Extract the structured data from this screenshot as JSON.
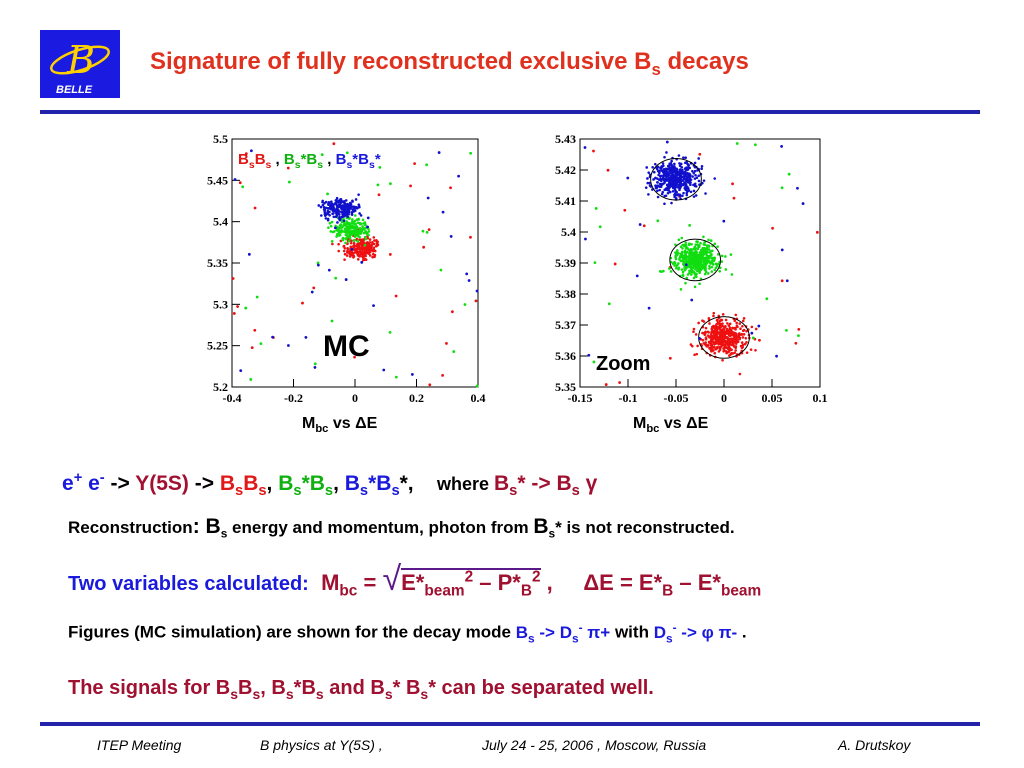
{
  "logo": {
    "letter": "B",
    "text": "BELLE"
  },
  "title": {
    "main": "Signature of fully reconstructed exclusive B",
    "sub": "s",
    "end": " decays"
  },
  "plots": {
    "left": {
      "legend_a": "B",
      "legend_a_sub": "s",
      "legend_b": "B",
      "legend_b_sub": "s",
      "sep1": " ,  ",
      "legend_c": "B",
      "legend_c_sub": "s",
      "legend_c_star": "*B",
      "legend_c_sub2": "s",
      "sep2": " , ",
      "legend_d": "B",
      "legend_d_sub": "s",
      "legend_d_star": "*B",
      "legend_d_sub2": "s",
      "legend_d_end": "*",
      "label": "MC",
      "xlabel_main": "M",
      "xlabel_sub": "bc",
      "xlabel_end": " vs ΔE",
      "yticks": [
        "5.5",
        "5.45",
        "5.4",
        "5.35",
        "5.3",
        "5.25",
        "5.2"
      ],
      "xticks": [
        "-0.4",
        "-0.2",
        "0",
        "0.2",
        "0.4"
      ]
    },
    "right": {
      "label": "Zoom",
      "xlabel_main": "M",
      "xlabel_sub": "bc",
      "xlabel_end": " vs ΔE",
      "yticks": [
        "5.43",
        "5.42",
        "5.41",
        "5.4",
        "5.39",
        "5.38",
        "5.37",
        "5.36",
        "5.35"
      ],
      "xticks": [
        "-0.15",
        "-0.1",
        "-0.05",
        "0",
        "0.05",
        "0.1"
      ]
    }
  },
  "line1": {
    "e1": "e",
    "e1_sup": "+",
    "e2": " e",
    "e2_sup": "-",
    "arrow1": " -> ",
    "y5s": "Y(5S)",
    "arrow2": " -> ",
    "a": "B",
    "a_sub": "s",
    "a2": "B",
    "a2_sub": "s",
    "comma1": ",  ",
    "b": "B",
    "b_sub": "s",
    "b2": "*B",
    "b2_sub": "s",
    "comma2": ",  ",
    "c": "B",
    "c_sub": "s",
    "c2": "*B",
    "c2_sub": "s",
    "c3": "*,",
    "where": "where ",
    "w1": "B",
    "w1_sub": "s",
    "w2": "* -> B",
    "w2_sub": "s",
    "gamma": " γ"
  },
  "line2": {
    "lead": "Reconstruction",
    "colon": ": B",
    "sub1": "s",
    "mid": " energy and momentum, photon from ",
    "b": "B",
    "sub2": "s",
    "end": "* is not reconstructed."
  },
  "line3": {
    "lead": "Two variables calculated:",
    "m": "M",
    "m_sub": "bc",
    "eq": " = ",
    "e": "E*",
    "e_sub": "beam",
    "e_sup": "2",
    "minus": " – P*",
    "p_sub": "B",
    "p_sup": "2",
    "comma": " ,",
    "de": "ΔE = E*",
    "de_sub": "B",
    "de2": " – E*",
    "de_sub2": "beam"
  },
  "line4": {
    "lead": "Figures (MC simulation) are shown for the decay mode ",
    "b": "B",
    "b_sub": "s",
    "arr": " -> D",
    "d_sub": "s",
    "d_sup": "-",
    "pi": " π+",
    "with": "  with ",
    "d2": "D",
    "d2_sub": "s",
    "d2_sup": "-",
    "arr2": " -> φ π-",
    "dot": " ."
  },
  "line5": {
    "t1": "The signals for B",
    "s1": "s",
    "t2": "B",
    "s2": "s",
    "t3": ", B",
    "s3": "s",
    "t4": "*B",
    "s4": "s",
    "t5": " and B",
    "s5": "s",
    "t6": "* B",
    "s6": "s",
    "t7": "*  can be separated well."
  },
  "footer": {
    "meeting": "ITEP Meeting",
    "topic": "B physics at Y(5S)  ,",
    "date": "July 24 - 25, 2006 , Moscow, Russia",
    "author": "A. Drutskoy"
  },
  "chart_data": [
    {
      "type": "scatter",
      "title": "",
      "xlabel": "Mbc vs ΔE",
      "ylabel": "",
      "xlim": [
        -0.4,
        0.4
      ],
      "ylim": [
        5.2,
        5.5
      ],
      "series": [
        {
          "name": "BsBs",
          "color": "#ee1111",
          "center": [
            0.02,
            5.368
          ],
          "spread": [
            0.03,
            0.007
          ]
        },
        {
          "name": "Bs*Bs",
          "color": "#11dd11",
          "center": [
            -0.01,
            5.39
          ],
          "spread": [
            0.03,
            0.007
          ]
        },
        {
          "name": "Bs*Bs*",
          "color": "#1111cc",
          "center": [
            -0.05,
            5.416
          ],
          "spread": [
            0.03,
            0.006
          ]
        }
      ]
    },
    {
      "type": "scatter",
      "title": "",
      "xlabel": "Mbc vs ΔE",
      "ylabel": "",
      "xlim": [
        -0.15,
        0.1
      ],
      "ylim": [
        5.35,
        5.43
      ],
      "series": [
        {
          "name": "BsBs",
          "color": "#ee1111",
          "center": [
            0.0,
            5.366
          ],
          "spread": [
            0.012,
            0.0028
          ]
        },
        {
          "name": "Bs*Bs",
          "color": "#11dd11",
          "center": [
            -0.03,
            5.391
          ],
          "spread": [
            0.012,
            0.0028
          ]
        },
        {
          "name": "Bs*Bs*",
          "color": "#1111cc",
          "center": [
            -0.05,
            5.417
          ],
          "spread": [
            0.012,
            0.0028
          ]
        }
      ]
    }
  ]
}
